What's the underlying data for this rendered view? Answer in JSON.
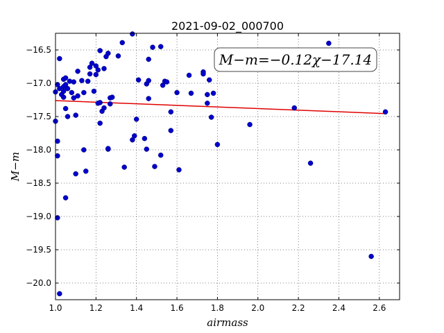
{
  "chart_data": {
    "type": "scatter",
    "title": "2021-09-02_000700",
    "xlabel": "airmass",
    "ylabel": "M−m",
    "annotation": "M−m=−0.12χ−17.14",
    "xlim": [
      1.0,
      2.7
    ],
    "ylim": [
      -20.25,
      -16.25
    ],
    "y_inverted": false,
    "grid": true,
    "x_ticks": [
      1.0,
      1.2,
      1.4,
      1.6,
      1.8,
      2.0,
      2.2,
      2.4,
      2.6
    ],
    "x_tick_labels": [
      "1.0",
      "1.2",
      "1.4",
      "1.6",
      "1.8",
      "2.0",
      "2.2",
      "2.4",
      "2.6"
    ],
    "y_ticks": [
      -16.5,
      -17.0,
      -17.5,
      -18.0,
      -18.5,
      -19.0,
      -19.5,
      -20.0
    ],
    "y_tick_labels": [
      "−16.5",
      "−17.0",
      "−17.5",
      "−18.0",
      "−18.5",
      "−19.0",
      "−19.5",
      "−20.0"
    ],
    "fit": {
      "slope": -0.12,
      "intercept": -17.14,
      "x_range": [
        1.0,
        2.63
      ],
      "color": "#e00000"
    },
    "marker_color": "#0000cc",
    "points": [
      [
        1.0,
        -17.57
      ],
      [
        1.01,
        -17.87
      ],
      [
        1.01,
        -18.09
      ],
      [
        1.01,
        -19.02
      ],
      [
        1.02,
        -20.16
      ],
      [
        1.0,
        -17.13
      ],
      [
        1.01,
        -17.02
      ],
      [
        1.02,
        -16.63
      ],
      [
        1.02,
        -17.08
      ],
      [
        1.03,
        -17.17
      ],
      [
        1.04,
        -17.05
      ],
      [
        1.04,
        -17.12
      ],
      [
        1.04,
        -17.21
      ],
      [
        1.04,
        -16.94
      ],
      [
        1.05,
        -16.92
      ],
      [
        1.05,
        -17.02
      ],
      [
        1.05,
        -17.38
      ],
      [
        1.05,
        -18.72
      ],
      [
        1.06,
        -17.5
      ],
      [
        1.06,
        -17.08
      ],
      [
        1.07,
        -16.97
      ],
      [
        1.08,
        -17.14
      ],
      [
        1.09,
        -16.98
      ],
      [
        1.09,
        -17.22
      ],
      [
        1.1,
        -17.48
      ],
      [
        1.1,
        -18.36
      ],
      [
        1.11,
        -16.82
      ],
      [
        1.11,
        -17.19
      ],
      [
        1.13,
        -16.96
      ],
      [
        1.14,
        -17.14
      ],
      [
        1.14,
        -18.0
      ],
      [
        1.15,
        -18.32
      ],
      [
        1.16,
        -16.97
      ],
      [
        1.17,
        -16.76
      ],
      [
        1.17,
        -16.86
      ],
      [
        1.18,
        -16.7
      ],
      [
        1.19,
        -17.12
      ],
      [
        1.2,
        -16.74
      ],
      [
        1.2,
        -16.87
      ],
      [
        1.21,
        -16.8
      ],
      [
        1.21,
        -17.3
      ],
      [
        1.22,
        -17.29
      ],
      [
        1.22,
        -17.6
      ],
      [
        1.22,
        -16.51
      ],
      [
        1.23,
        -17.42
      ],
      [
        1.24,
        -16.78
      ],
      [
        1.24,
        -17.37
      ],
      [
        1.25,
        -16.6
      ],
      [
        1.26,
        -17.99
      ],
      [
        1.26,
        -17.98
      ],
      [
        1.26,
        -16.55
      ],
      [
        1.27,
        -17.22
      ],
      [
        1.27,
        -17.31
      ],
      [
        1.28,
        -17.21
      ],
      [
        1.31,
        -16.59
      ],
      [
        1.33,
        -16.39
      ],
      [
        1.34,
        -18.26
      ],
      [
        1.38,
        -16.26
      ],
      [
        1.38,
        -17.85
      ],
      [
        1.39,
        -17.79
      ],
      [
        1.4,
        -17.54
      ],
      [
        1.41,
        -16.95
      ],
      [
        1.44,
        -17.83
      ],
      [
        1.45,
        -17.99
      ],
      [
        1.45,
        -17.01
      ],
      [
        1.46,
        -16.96
      ],
      [
        1.46,
        -17.23
      ],
      [
        1.46,
        -16.64
      ],
      [
        1.48,
        -16.46
      ],
      [
        1.49,
        -18.25
      ],
      [
        1.52,
        -18.08
      ],
      [
        1.52,
        -16.45
      ],
      [
        1.53,
        -17.03
      ],
      [
        1.54,
        -16.97
      ],
      [
        1.55,
        -16.98
      ],
      [
        1.57,
        -17.71
      ],
      [
        1.57,
        -17.43
      ],
      [
        1.6,
        -17.14
      ],
      [
        1.61,
        -18.3
      ],
      [
        1.66,
        -16.88
      ],
      [
        1.67,
        -17.15
      ],
      [
        1.73,
        -16.83
      ],
      [
        1.73,
        -16.86
      ],
      [
        1.75,
        -17.17
      ],
      [
        1.75,
        -17.3
      ],
      [
        1.76,
        -16.95
      ],
      [
        1.77,
        -17.51
      ],
      [
        1.78,
        -17.15
      ],
      [
        1.8,
        -17.92
      ],
      [
        1.96,
        -17.62
      ],
      [
        2.18,
        -17.37
      ],
      [
        2.26,
        -18.2
      ],
      [
        2.35,
        -16.4
      ],
      [
        2.56,
        -19.6
      ],
      [
        2.63,
        -17.43
      ]
    ]
  }
}
